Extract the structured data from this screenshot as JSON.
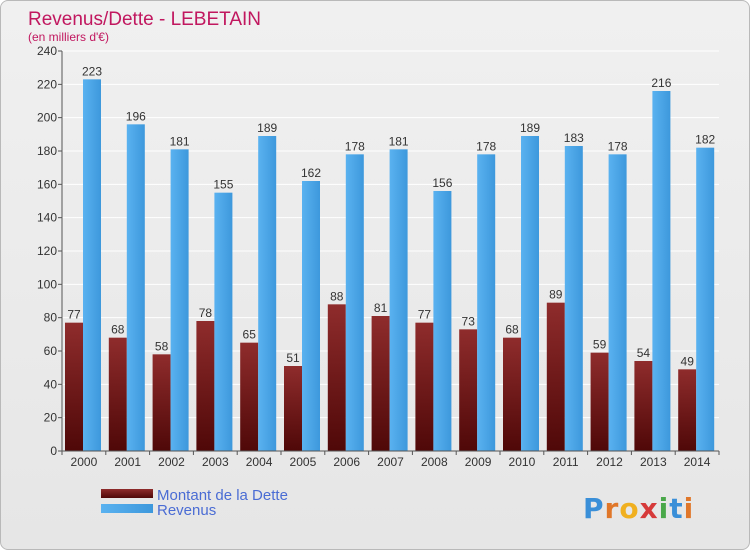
{
  "chart_data": {
    "type": "bar",
    "title": "Revenus/Dette - LEBETAIN",
    "subtitle": "(en milliers d'€)",
    "categories": [
      "2000",
      "2001",
      "2002",
      "2003",
      "2004",
      "2005",
      "2006",
      "2007",
      "2008",
      "2009",
      "2010",
      "2011",
      "2012",
      "2013",
      "2014"
    ],
    "series": [
      {
        "name": "Montant de la Dette",
        "values": [
          77,
          68,
          58,
          78,
          65,
          51,
          88,
          81,
          77,
          73,
          68,
          89,
          59,
          54,
          49
        ]
      },
      {
        "name": "Revenus",
        "values": [
          223,
          196,
          181,
          155,
          189,
          162,
          178,
          181,
          156,
          178,
          189,
          183,
          178,
          216,
          182
        ]
      }
    ],
    "ylim": [
      0,
      240
    ],
    "yticks": [
      0,
      20,
      40,
      60,
      80,
      100,
      120,
      140,
      160,
      180,
      200,
      220,
      240
    ],
    "grid": true,
    "legend_position": "bottom-left"
  },
  "colors": {
    "title": "#c1175f",
    "dette": "#7a1a1a",
    "revenus": "#4aa6e8",
    "legend_text": "#4a6cd4"
  },
  "logo": {
    "text": "Proxiti"
  }
}
